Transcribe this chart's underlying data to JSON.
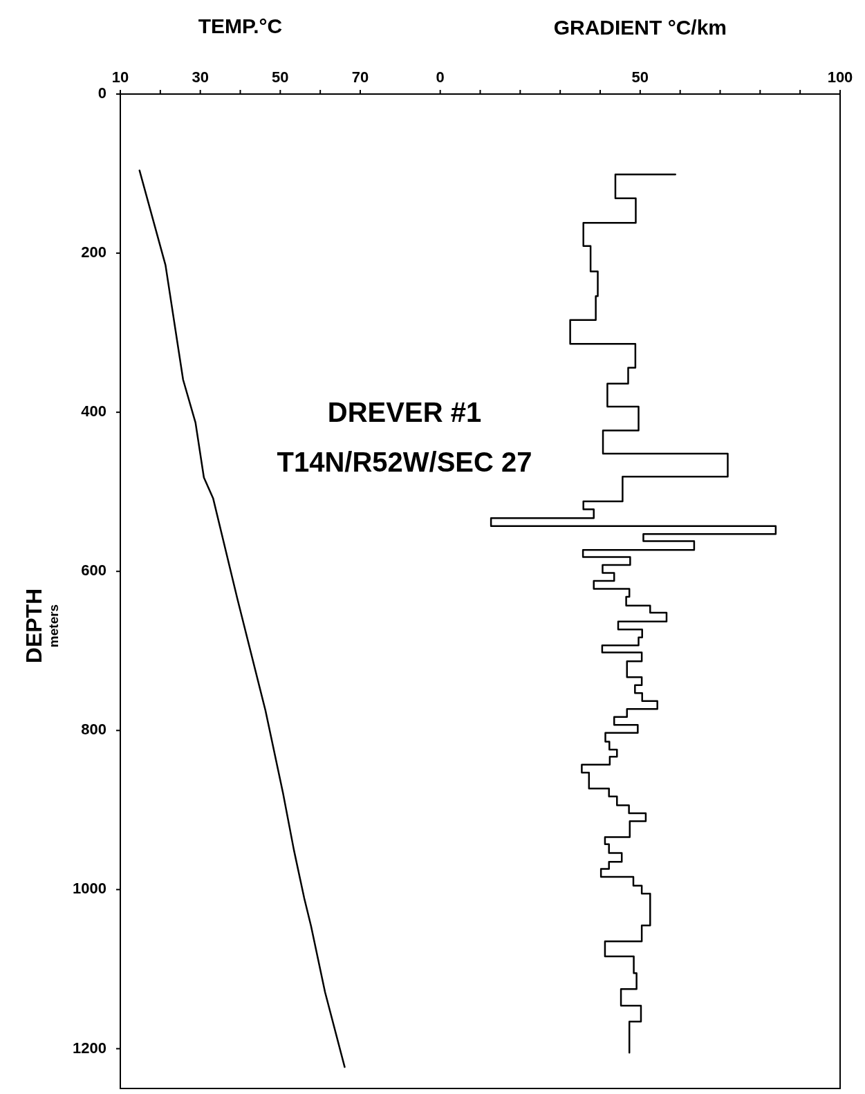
{
  "chart_data": {
    "type": "line",
    "xlabel": "TEMP.°C",
    "x2label": "GRADIENT °C/km",
    "ylabel": "DEPTH meters",
    "annotations": [
      "DREVER #1",
      "T14N/R52W/SEC 27"
    ],
    "xlim": [
      10,
      190
    ],
    "xticks": [
      10,
      {
        "value": 20,
        "label": null
      },
      30,
      {
        "value": 40,
        "label": null
      },
      50,
      {
        "value": 60,
        "label": null
      },
      70
    ],
    "x2lim": [
      -80,
      100
    ],
    "x2ticks": [
      0,
      {
        "value": 10,
        "label": null
      },
      {
        "value": 20,
        "label": null
      },
      {
        "value": 30,
        "label": null
      },
      {
        "value": 40,
        "label": null
      },
      50,
      {
        "value": 60,
        "label": null
      },
      {
        "value": 70,
        "label": null
      },
      {
        "value": 80,
        "label": null
      },
      {
        "value": 90,
        "label": null
      },
      100
    ],
    "ylim": [
      1250,
      0
    ],
    "yticks": [
      0,
      200,
      400,
      600,
      800,
      1000,
      1200
    ],
    "series": [
      {
        "color": "#000000",
        "x": [
          14.8,
          21.3,
          25.7,
          28.8,
          30.9,
          33.2,
          39.3,
          46.3,
          50.7,
          53.4,
          56.0,
          57.7,
          61.2,
          66.1
        ],
        "values": [
          96,
          215,
          359,
          413,
          482,
          508,
          635,
          775,
          879,
          950,
          1011,
          1046,
          1129,
          1223
        ]
      },
      {
        "color": "#000000",
        "axis": "x2",
        "x": [
          58.8,
          43.8,
          43.8,
          48.9,
          48.9,
          35.8,
          35.8,
          37.6,
          37.6,
          39.4,
          39.4,
          38.9,
          38.9,
          32.5,
          32.5,
          48.8,
          48.8,
          47.0,
          47.0,
          41.8,
          41.8,
          49.6,
          49.6,
          40.7,
          40.7,
          71.9,
          71.9,
          45.6,
          45.6,
          35.8,
          35.8,
          38.4,
          38.4,
          12.7,
          12.7,
          83.9,
          83.9,
          50.8,
          50.8,
          63.5,
          63.5,
          35.7,
          35.7,
          47.5,
          47.5,
          40.6,
          40.6,
          43.5,
          43.5,
          38.4,
          38.4,
          47.3,
          47.3,
          46.5,
          46.5,
          52.5,
          52.5,
          56.6,
          56.6,
          44.5,
          44.5,
          50.5,
          50.5,
          49.6,
          49.6,
          40.5,
          40.5,
          50.4,
          50.4,
          46.7,
          46.7,
          50.4,
          50.4,
          48.7,
          48.7,
          50.5,
          50.5,
          54.3,
          54.3,
          46.7,
          46.7,
          43.5,
          43.5,
          49.4,
          49.4,
          41.3,
          41.3,
          42.3,
          42.3,
          44.2,
          44.2,
          42.4,
          42.4,
          35.4,
          35.4,
          37.2,
          37.2,
          42.2,
          42.2,
          44.2,
          44.2,
          47.2,
          47.2,
          51.4,
          51.4,
          47.4,
          47.4,
          41.2,
          41.2,
          42.2,
          42.2,
          45.4,
          45.4,
          42.2,
          42.2,
          40.2,
          40.2,
          48.3,
          48.3,
          50.4,
          50.4,
          52.5,
          52.5,
          50.4,
          50.4,
          41.2,
          41.2,
          48.4,
          48.4,
          49.1,
          49.1,
          45.2,
          45.2,
          50.2,
          50.2,
          47.3,
          47.3
        ],
        "values": [
          101,
          101,
          131,
          131,
          162,
          162,
          191,
          191,
          223,
          223,
          254,
          254,
          284,
          284,
          314,
          314,
          344,
          344,
          364,
          364,
          393,
          393,
          423,
          423,
          452,
          452,
          481,
          481,
          512,
          512,
          522,
          522,
          533,
          533,
          543,
          543,
          553,
          553,
          562,
          562,
          573,
          573,
          582,
          582,
          592,
          592,
          602,
          602,
          612,
          612,
          622,
          622,
          632,
          632,
          643,
          643,
          652,
          652,
          663,
          663,
          673,
          673,
          683,
          683,
          693,
          693,
          702,
          702,
          713,
          713,
          733,
          733,
          743,
          743,
          753,
          753,
          763,
          763,
          773,
          773,
          783,
          783,
          793,
          793,
          803,
          803,
          814,
          814,
          824,
          824,
          833,
          833,
          843,
          843,
          853,
          853,
          873,
          873,
          883,
          883,
          894,
          894,
          904,
          904,
          914,
          914,
          934,
          934,
          943,
          943,
          954,
          954,
          965,
          965,
          974,
          974,
          984,
          984,
          995,
          995,
          1005,
          1005,
          1045,
          1045,
          1065,
          1065,
          1084,
          1084,
          1105,
          1105,
          1125,
          1125,
          1146,
          1146,
          1166,
          1166,
          1205
        ]
      }
    ]
  }
}
